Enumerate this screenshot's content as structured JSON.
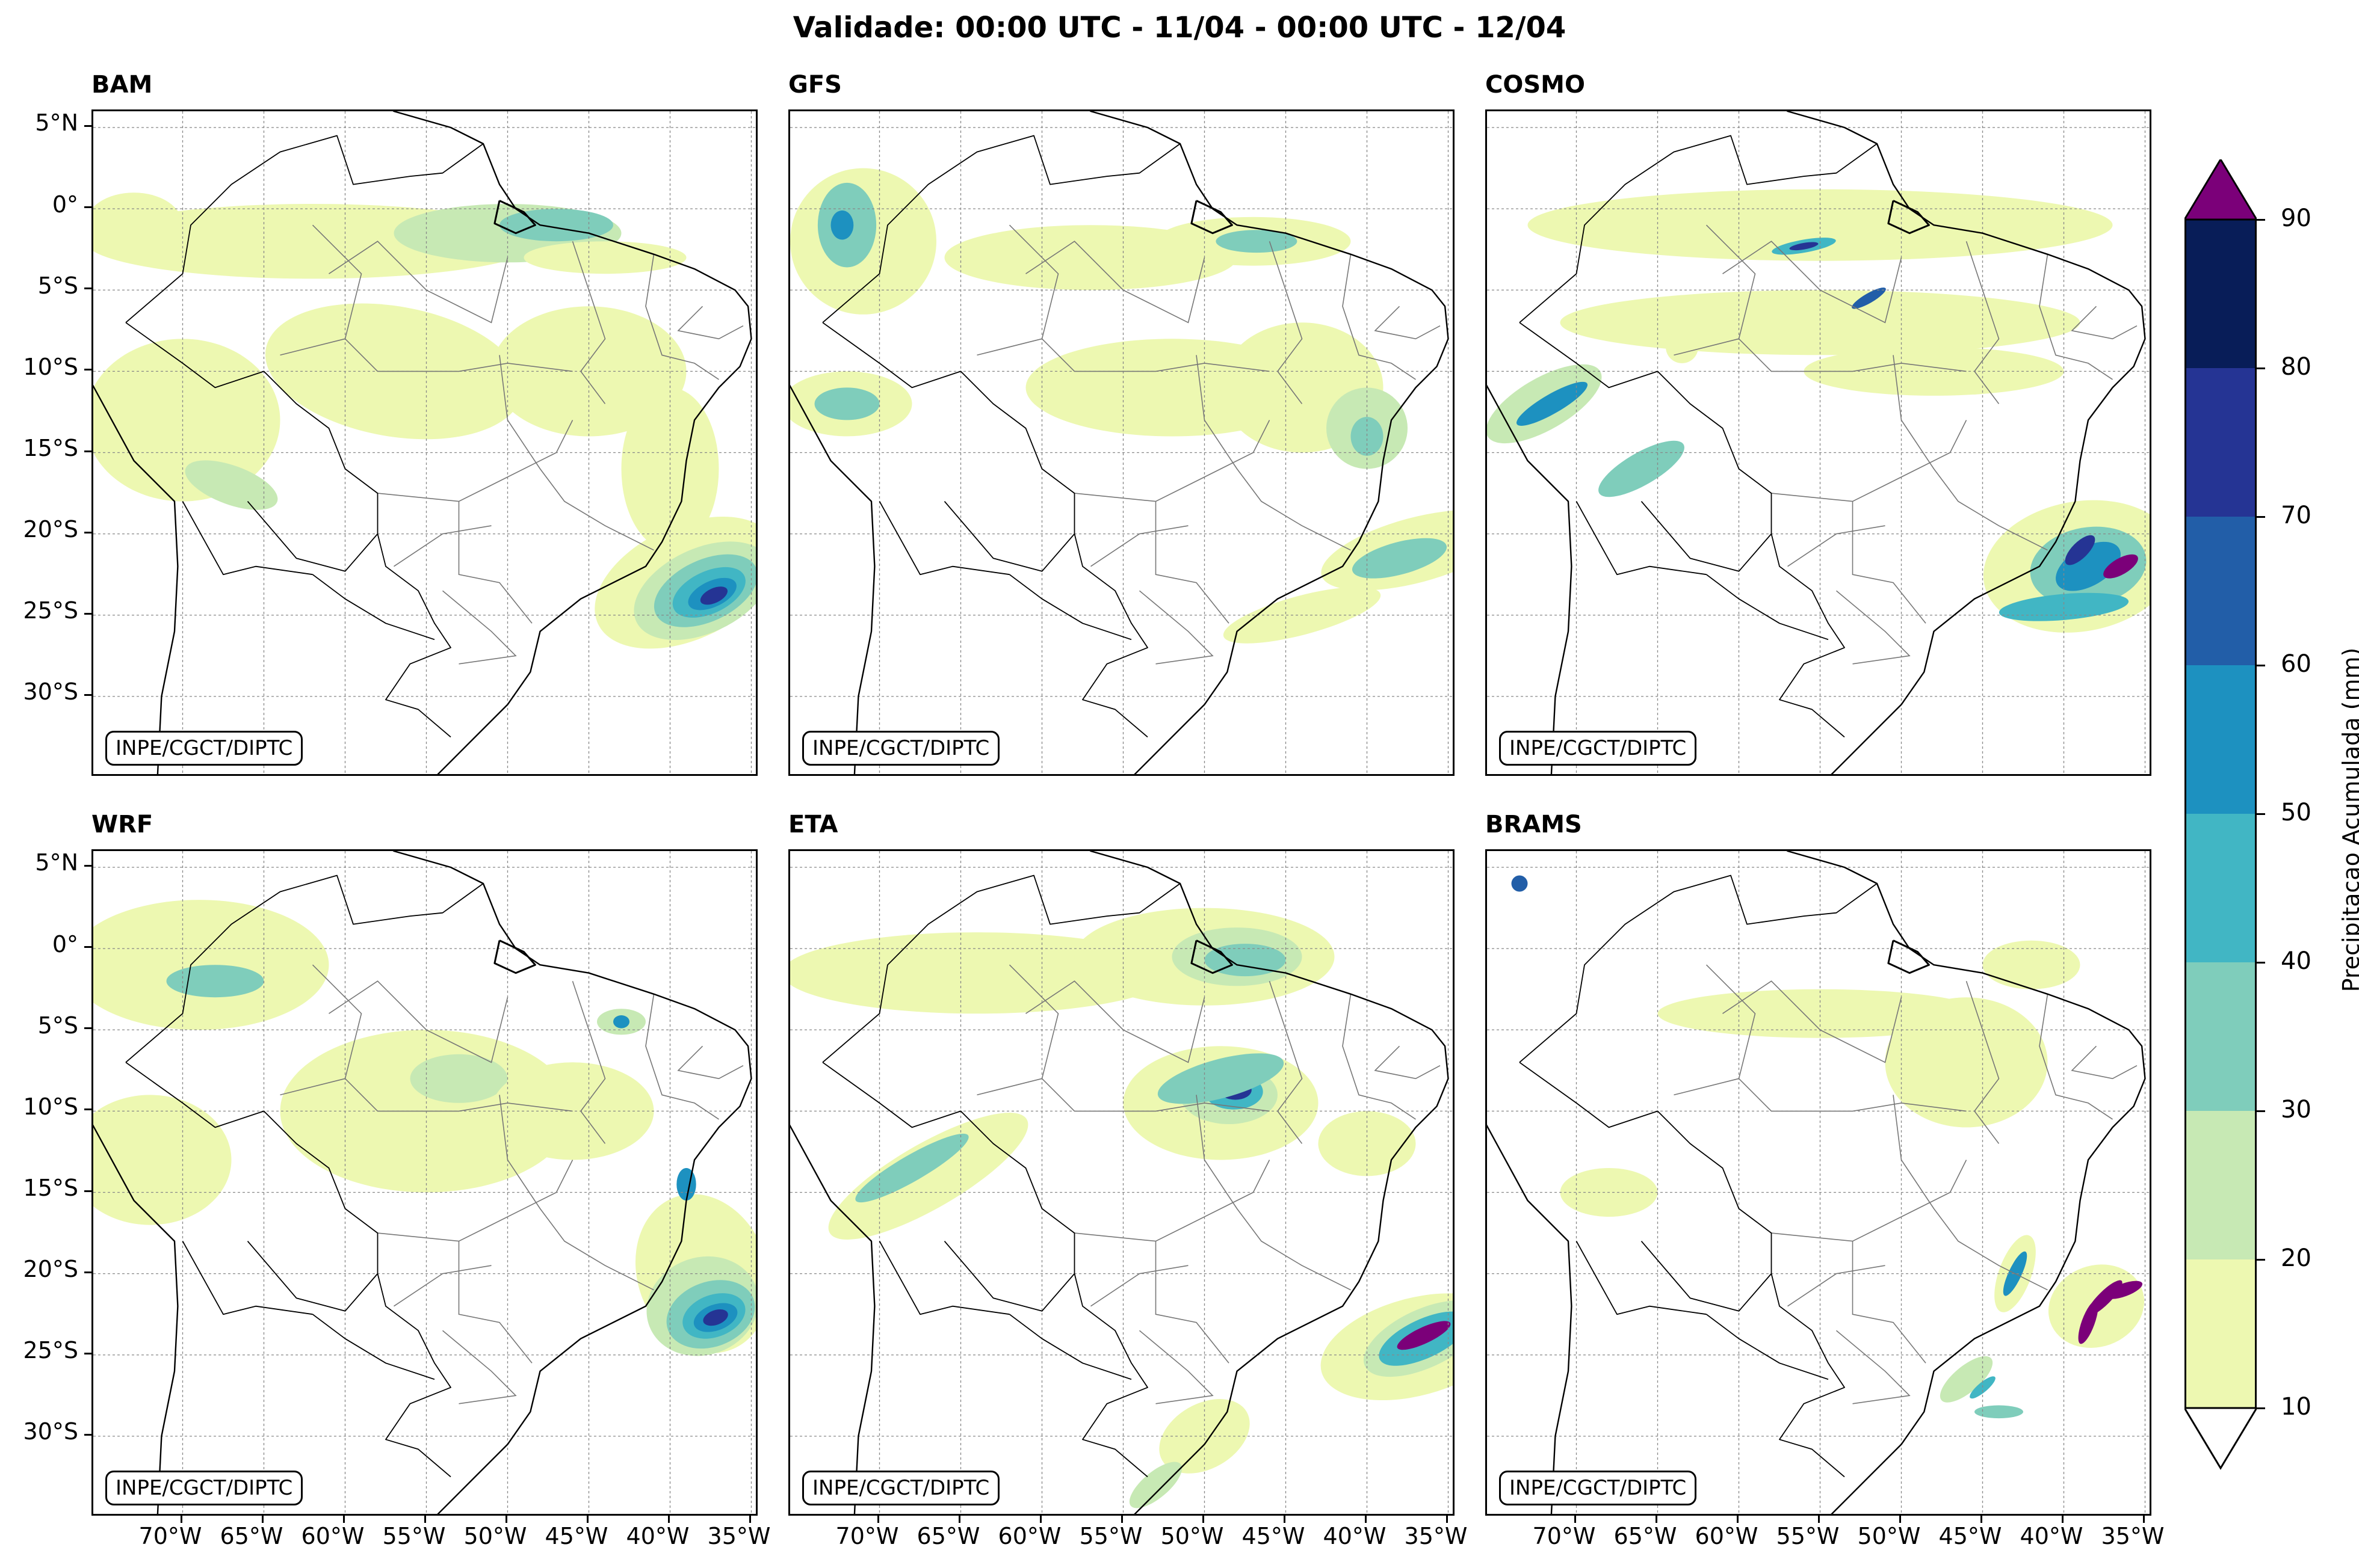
{
  "title": "Validade: 00:00 UTC - 11/04 - 00:00 UTC - 12/04",
  "credit": "INPE/CGCT/DIPTC",
  "panels": [
    {
      "name": "BAM"
    },
    {
      "name": "GFS"
    },
    {
      "name": "COSMO"
    },
    {
      "name": "WRF"
    },
    {
      "name": "ETA"
    },
    {
      "name": "BRAMS"
    }
  ],
  "lat_labels": [
    "5°N",
    "0°",
    "5°S",
    "10°S",
    "15°S",
    "20°S",
    "25°S",
    "30°S"
  ],
  "lon_labels": [
    "70°W",
    "65°W",
    "60°W",
    "55°W",
    "50°W",
    "45°W",
    "40°W",
    "35°W"
  ],
  "colorbar": {
    "label": "Precipitacao Acumulada (mm)",
    "levels": [
      "10",
      "20",
      "30",
      "40",
      "50",
      "60",
      "70",
      "80",
      "90"
    ],
    "colors": [
      "#edf8b1",
      "#c7e9b4",
      "#7fcdbb",
      "#41b6c4",
      "#1d91c0",
      "#225ea8",
      "#253494",
      "#081d58"
    ],
    "over_color": "#7b0079",
    "under_color": "#ffffff"
  }
}
